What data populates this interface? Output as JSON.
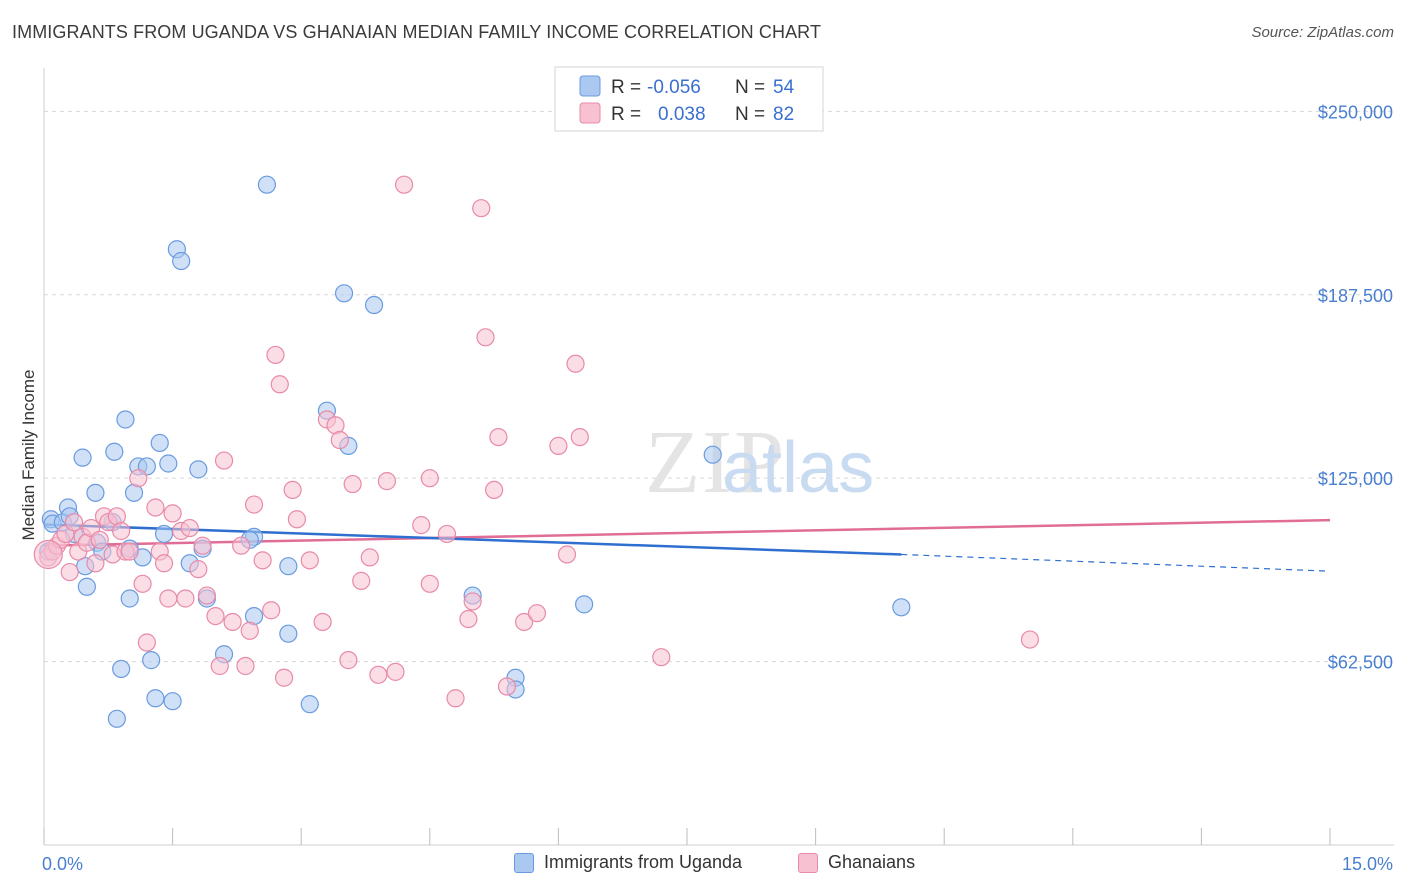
{
  "title": "IMMIGRANTS FROM UGANDA VS GHANAIAN MEDIAN FAMILY INCOME CORRELATION CHART",
  "source": "Source: ZipAtlas.com",
  "watermark": {
    "zip": "ZIP",
    "atlas": "atlas"
  },
  "colors": {
    "uganda_fill": "#aac8f0",
    "uganda_stroke": "#6a9be0",
    "uganda_line": "#2f6fd0",
    "ghana_fill": "#f7c1d2",
    "ghana_stroke": "#e88aa8",
    "ghana_line": "#e06d96",
    "axis_text": "#4a7fd0",
    "grid": "#d8d8d8"
  },
  "legend": {
    "r_label": "R =",
    "n_label": "N =",
    "rows": [
      {
        "series": "uganda",
        "r": "-0.056",
        "n": "54"
      },
      {
        "series": "ghana",
        "r": "0.038",
        "n": "82"
      }
    ]
  },
  "bottom_legend": {
    "uganda": "Immigrants from Uganda",
    "ghana": "Ghanaians"
  },
  "chart_data": {
    "type": "scatter",
    "title": "IMMIGRANTS FROM UGANDA VS GHANAIAN MEDIAN FAMILY INCOME CORRELATION CHART",
    "xlabel": "",
    "ylabel": "Median Family Income",
    "xlim": [
      0,
      15
    ],
    "ylim": [
      0,
      260000
    ],
    "x_tick_labels": [
      "0.0%",
      "15.0%"
    ],
    "y_ticks": [
      62500,
      125000,
      187500,
      250000
    ],
    "y_tick_labels": [
      "$62,500",
      "$125,000",
      "$187,500",
      "$250,000"
    ],
    "series": [
      {
        "name": "Immigrants from Uganda",
        "key": "uganda",
        "R": -0.056,
        "N": 54,
        "trend": {
          "x0": 0.0,
          "y0": 109200,
          "x1": 10.0,
          "y1": 99000,
          "dash_to_x": 15.0,
          "dash_to_y": 93300
        },
        "points": [
          [
            0.05,
            100000
          ],
          [
            0.08,
            111000
          ],
          [
            0.1,
            109500
          ],
          [
            0.22,
            110000
          ],
          [
            0.28,
            115000
          ],
          [
            0.3,
            112000
          ],
          [
            0.35,
            106000
          ],
          [
            0.45,
            132000
          ],
          [
            0.48,
            95000
          ],
          [
            0.5,
            88000
          ],
          [
            0.6,
            120000
          ],
          [
            0.62,
            103000
          ],
          [
            0.68,
            100000
          ],
          [
            0.8,
            110000
          ],
          [
            0.82,
            134000
          ],
          [
            0.9,
            60000
          ],
          [
            0.95,
            145000
          ],
          [
            1.0,
            84000
          ],
          [
            1.05,
            120000
          ],
          [
            1.1,
            129000
          ],
          [
            1.15,
            98000
          ],
          [
            1.2,
            129000
          ],
          [
            1.25,
            63000
          ],
          [
            1.3,
            50000
          ],
          [
            1.35,
            137000
          ],
          [
            1.4,
            106000
          ],
          [
            1.45,
            130000
          ],
          [
            1.5,
            49000
          ],
          [
            1.55,
            203000
          ],
          [
            1.6,
            199000
          ],
          [
            1.7,
            96000
          ],
          [
            1.8,
            128000
          ],
          [
            1.85,
            101000
          ],
          [
            1.9,
            84000
          ],
          [
            2.1,
            65000
          ],
          [
            2.45,
            105000
          ],
          [
            2.45,
            78000
          ],
          [
            2.6,
            225000
          ],
          [
            2.85,
            95000
          ],
          [
            2.85,
            72000
          ],
          [
            3.1,
            48000
          ],
          [
            3.5,
            188000
          ],
          [
            3.55,
            136000
          ],
          [
            3.85,
            184000
          ],
          [
            5.0,
            85000
          ],
          [
            5.5,
            57000
          ],
          [
            5.5,
            53000
          ],
          [
            6.3,
            82000
          ],
          [
            7.8,
            133000
          ],
          [
            10.0,
            81000
          ],
          [
            0.85,
            43000
          ],
          [
            2.4,
            104000
          ],
          [
            3.3,
            148000
          ],
          [
            1.0,
            101000
          ]
        ]
      },
      {
        "name": "Ghanaians",
        "key": "ghana",
        "R": 0.038,
        "N": 82,
        "trend": {
          "x0": 0.0,
          "y0": 102000,
          "x1": 15.0,
          "y1": 110700
        },
        "points": [
          [
            0.05,
            98000
          ],
          [
            0.1,
            100000
          ],
          [
            0.15,
            102000
          ],
          [
            0.2,
            104000
          ],
          [
            0.25,
            106000
          ],
          [
            0.3,
            93000
          ],
          [
            0.35,
            110000
          ],
          [
            0.4,
            100000
          ],
          [
            0.45,
            105000
          ],
          [
            0.5,
            103000
          ],
          [
            0.55,
            108000
          ],
          [
            0.6,
            96000
          ],
          [
            0.65,
            104000
          ],
          [
            0.7,
            112000
          ],
          [
            0.75,
            110000
          ],
          [
            0.8,
            99000
          ],
          [
            0.85,
            112000
          ],
          [
            0.9,
            107000
          ],
          [
            0.95,
            100000
          ],
          [
            1.0,
            100000
          ],
          [
            1.1,
            125000
          ],
          [
            1.15,
            89000
          ],
          [
            1.2,
            69000
          ],
          [
            1.3,
            115000
          ],
          [
            1.35,
            100000
          ],
          [
            1.4,
            96000
          ],
          [
            1.45,
            84000
          ],
          [
            1.5,
            113000
          ],
          [
            1.6,
            107000
          ],
          [
            1.65,
            84000
          ],
          [
            1.7,
            108000
          ],
          [
            1.8,
            94000
          ],
          [
            1.85,
            102000
          ],
          [
            1.9,
            85000
          ],
          [
            2.0,
            78000
          ],
          [
            2.05,
            61000
          ],
          [
            2.1,
            131000
          ],
          [
            2.2,
            76000
          ],
          [
            2.3,
            102000
          ],
          [
            2.35,
            61000
          ],
          [
            2.4,
            73000
          ],
          [
            2.45,
            116000
          ],
          [
            2.55,
            97000
          ],
          [
            2.65,
            80000
          ],
          [
            2.7,
            167000
          ],
          [
            2.75,
            157000
          ],
          [
            2.8,
            57000
          ],
          [
            2.9,
            121000
          ],
          [
            2.95,
            111000
          ],
          [
            3.1,
            97000
          ],
          [
            3.25,
            76000
          ],
          [
            3.3,
            145000
          ],
          [
            3.4,
            143000
          ],
          [
            3.45,
            138000
          ],
          [
            3.55,
            63000
          ],
          [
            3.6,
            123000
          ],
          [
            3.7,
            90000
          ],
          [
            3.8,
            98000
          ],
          [
            3.9,
            58000
          ],
          [
            4.0,
            124000
          ],
          [
            4.1,
            59000
          ],
          [
            4.2,
            225000
          ],
          [
            4.4,
            109000
          ],
          [
            4.5,
            125000
          ],
          [
            4.5,
            89000
          ],
          [
            4.7,
            106000
          ],
          [
            4.8,
            50000
          ],
          [
            4.95,
            77000
          ],
          [
            5.0,
            83000
          ],
          [
            5.1,
            217000
          ],
          [
            5.15,
            173000
          ],
          [
            5.25,
            121000
          ],
          [
            5.3,
            139000
          ],
          [
            5.4,
            54000
          ],
          [
            5.6,
            76000
          ],
          [
            5.75,
            79000
          ],
          [
            6.0,
            136000
          ],
          [
            6.1,
            99000
          ],
          [
            6.2,
            164000
          ],
          [
            6.25,
            139000
          ],
          [
            7.2,
            64000
          ],
          [
            11.5,
            70000
          ]
        ]
      }
    ]
  }
}
